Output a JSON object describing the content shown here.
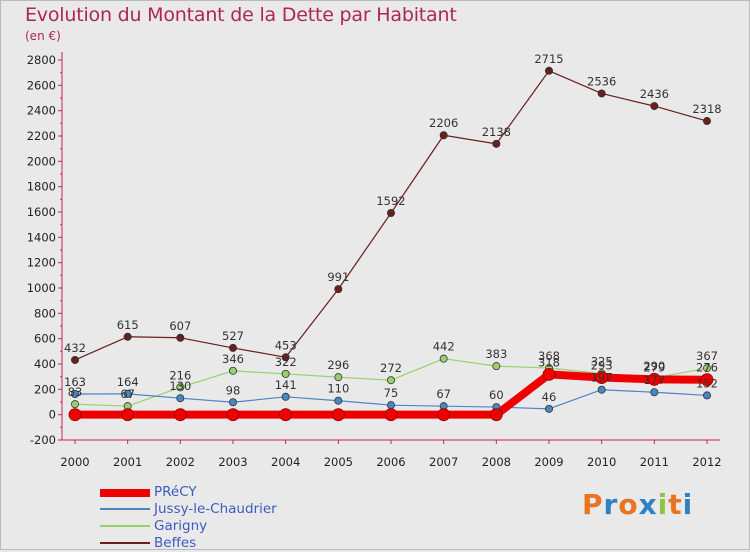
{
  "title": "Evolution du Montant de la Dette par Habitant",
  "unit_label": "(en €)",
  "logo": {
    "text": "Proxiti",
    "letters": [
      "P",
      "r",
      "o",
      "x",
      "i",
      "t",
      "i"
    ],
    "colors": [
      "#e9731e",
      "#2d82c4",
      "#e9731e",
      "#2d82c4",
      "#8cc63e",
      "#e9731e",
      "#2d82c4"
    ]
  },
  "chart_data": {
    "type": "line",
    "x": [
      "2000",
      "2001",
      "2002",
      "2003",
      "2004",
      "2005",
      "2006",
      "2007",
      "2008",
      "2009",
      "2010",
      "2011",
      "2012"
    ],
    "ylim": [
      -200,
      2800
    ],
    "yticks": [
      "-200",
      "0",
      "200",
      "400",
      "600",
      "800",
      "1000",
      "1200",
      "1400",
      "1600",
      "1800",
      "2000",
      "2200",
      "2400",
      "2600",
      "2800"
    ],
    "grid": false,
    "legend_position": "bottom-left",
    "series": [
      {
        "name": "PRéCY",
        "color": "#ee0000",
        "values": [
          0,
          0,
          0,
          0,
          0,
          0,
          0,
          0,
          0,
          318,
          293,
          279,
          276
        ],
        "labels": [
          "",
          "",
          "",
          "",
          "",
          "",
          "",
          "",
          "",
          "318",
          "293",
          "279",
          "276"
        ]
      },
      {
        "name": "Jussy-le-Chaudrier",
        "color": "#4a86c4",
        "values": [
          163,
          164,
          130,
          98,
          141,
          110,
          75,
          67,
          60,
          46,
          197,
          177,
          152
        ],
        "labels": [
          "163",
          "164",
          "130",
          "98",
          "141",
          "110",
          "75",
          "67",
          "60",
          "46",
          "197",
          "177",
          "152"
        ]
      },
      {
        "name": "Garigny",
        "color": "#98d16a",
        "values": [
          83,
          67,
          216,
          346,
          322,
          296,
          272,
          442,
          383,
          368,
          325,
          290,
          367
        ],
        "labels": [
          "83",
          "67",
          "216",
          "346",
          "322",
          "296",
          "272",
          "442",
          "383",
          "368",
          "325",
          "290",
          "367"
        ]
      },
      {
        "name": "Beffes",
        "color": "#6b1e1e",
        "values": [
          432,
          615,
          607,
          527,
          453,
          991,
          1592,
          2206,
          2138,
          2715,
          2536,
          2436,
          2318
        ],
        "labels": [
          "432",
          "615",
          "607",
          "527",
          "453",
          "991",
          "1592",
          "2206",
          "2138",
          "2715",
          "2536",
          "2436",
          "2318"
        ]
      }
    ]
  }
}
